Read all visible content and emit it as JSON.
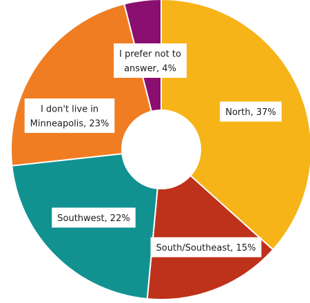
{
  "chart_data": {
    "type": "pie",
    "categories": [
      "North",
      "South/Southeast",
      "Southwest",
      "I don't live in Minneapolis",
      "I prefer not to answer"
    ],
    "values": [
      37,
      15,
      22,
      23,
      4
    ],
    "unit": "%",
    "labels": [
      [
        "North, 37%"
      ],
      [
        "South/Southeast, 15%"
      ],
      [
        "Southwest, 22%"
      ],
      [
        "I don't live in",
        "Minneapolis, 23%"
      ],
      [
        "I prefer not to",
        "answer, 4%"
      ]
    ],
    "colors": [
      "#f6b418",
      "#be311a",
      "#129191",
      "#f07d22",
      "#8b0e71"
    ],
    "donut": true,
    "legend": "none",
    "start": "top (12 o'clock), clockwise"
  }
}
